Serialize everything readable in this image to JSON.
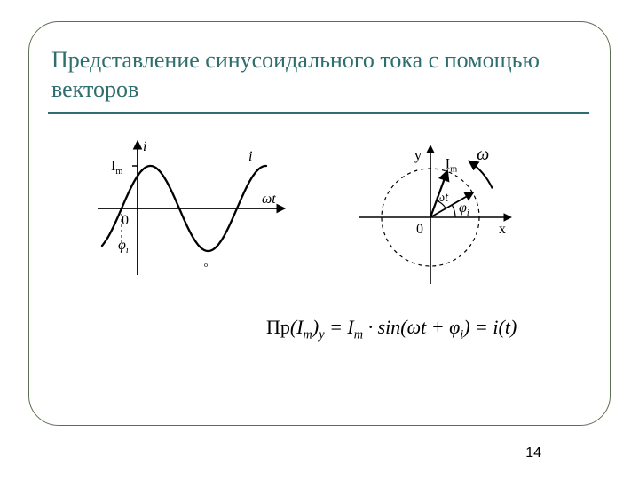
{
  "title": "Представление синусоидального тока с помощью векторов",
  "title_color": "#2f6e6e",
  "panel_border_color": "#5a7050",
  "rule_color": "#2f6e6e",
  "page_number": "14",
  "formula": {
    "lhs_pref": "Пр",
    "lhs_inner1": "(I",
    "lhs_sub1": "m",
    "lhs_inner2": ")",
    "lhs_sub2": "y",
    "eq1": " = ",
    "rhs1": "I",
    "rhs1_sub": "m",
    "rhs2": " · sin(ωt + φ",
    "rhs2_sub": "i",
    "rhs3": ") = ",
    "rhs4": "i(t)"
  },
  "sine_diagram": {
    "axis_color": "#000000",
    "curve_color": "#000000",
    "label_i_axis": "i",
    "label_i_curve": "i",
    "label_Im": "I",
    "label_Im_sub": "m",
    "label_wt": "ωt",
    "label_zero": "0",
    "label_phi": "φ",
    "label_phi_sub": "i",
    "stroke_width": 2.3,
    "font_size": 16
  },
  "vector_diagram": {
    "axis_color": "#000000",
    "circle_dash": "4,4",
    "label_y": "y",
    "label_x": "x",
    "label_Im": "I",
    "label_Im_sub": "m",
    "label_wt": "ωt",
    "label_zero": "0",
    "label_phi": "φ",
    "label_phi_sub": "i",
    "label_omega": "ω",
    "radius": 55,
    "vector1_angle_deg": 70,
    "vector2_angle_deg": 30,
    "stroke_width": 1.6,
    "font_size": 16
  }
}
